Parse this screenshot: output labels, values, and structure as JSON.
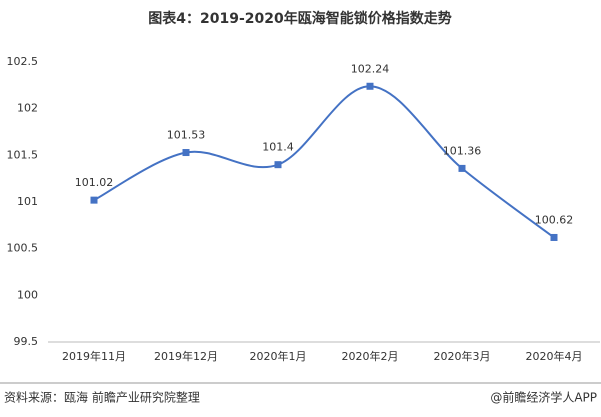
{
  "chart_data": {
    "type": "line",
    "title": "图表4：2019-2020年瓯海智能锁价格指数走势",
    "categories": [
      "2019年11月",
      "2019年12月",
      "2020年1月",
      "2020年2月",
      "2020年3月",
      "2020年4月"
    ],
    "series": [
      {
        "name": "价格指数",
        "color": "#4472c4",
        "values": [
          101.02,
          101.53,
          101.4,
          102.24,
          101.36,
          100.62
        ]
      }
    ],
    "ylim": [
      99.5,
      102.5
    ],
    "yticks": [
      99.5,
      100,
      100.5,
      101,
      101.5,
      102,
      102.5
    ],
    "grid": false,
    "smooth": true
  },
  "footer": {
    "source": "资料来源：瓯海 前瞻产业研究院整理",
    "brand": "@前瞻经济学人APP"
  }
}
